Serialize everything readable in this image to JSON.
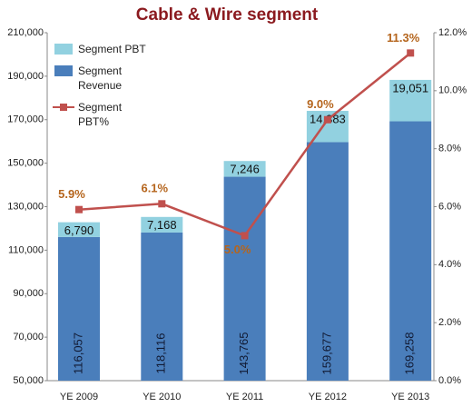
{
  "chart_data": {
    "type": "bar",
    "title": "Cable & Wire segment",
    "categories": [
      "YE 2009",
      "YE 2010",
      "YE 2011",
      "YE 2012",
      "YE 2013"
    ],
    "series": [
      {
        "name": "Segment Revenue",
        "color": "#4a7ebb",
        "values": [
          116057,
          118116,
          143765,
          159677,
          169258
        ],
        "value_labels": [
          "116,057",
          "118,116",
          "143,765",
          "159,677",
          "169,258"
        ]
      },
      {
        "name": "Segment PBT",
        "color": "#92d1e0",
        "values": [
          6790,
          7168,
          7246,
          14383,
          19051
        ],
        "value_labels": [
          "6,790",
          "7,168",
          "7,246",
          "14,383",
          "19,051"
        ]
      },
      {
        "name": "Segment PBT%",
        "type": "line",
        "axis": "y2",
        "color": "#c0504d",
        "values": [
          5.9,
          6.1,
          5.0,
          9.0,
          11.3
        ],
        "value_labels": [
          "5.9%",
          "6.1%",
          "5.0%",
          "9.0%",
          "11.3%"
        ]
      }
    ],
    "stacked": true,
    "ylim": [
      50000,
      210000
    ],
    "yticks": [
      {
        "value": 50000,
        "label": "50,000"
      },
      {
        "value": 70000,
        "label": "70,000"
      },
      {
        "value": 90000,
        "label": "90,000"
      },
      {
        "value": 110000,
        "label": "110,000"
      },
      {
        "value": 130000,
        "label": "130,000"
      },
      {
        "value": 150000,
        "label": "150,000"
      },
      {
        "value": 170000,
        "label": "170,000"
      },
      {
        "value": 190000,
        "label": "190,000"
      },
      {
        "value": 210000,
        "label": "210,000"
      }
    ],
    "y2lim": [
      0,
      12
    ],
    "y2ticks": [
      {
        "value": 0,
        "label": "0.0%"
      },
      {
        "value": 2,
        "label": "2.0%"
      },
      {
        "value": 4,
        "label": "4.0%"
      },
      {
        "value": 6,
        "label": "6.0%"
      },
      {
        "value": 8,
        "label": "8.0%"
      },
      {
        "value": 10,
        "label": "10.0%"
      },
      {
        "value": 12,
        "label": "12.0%"
      }
    ],
    "legend": "upper left"
  }
}
